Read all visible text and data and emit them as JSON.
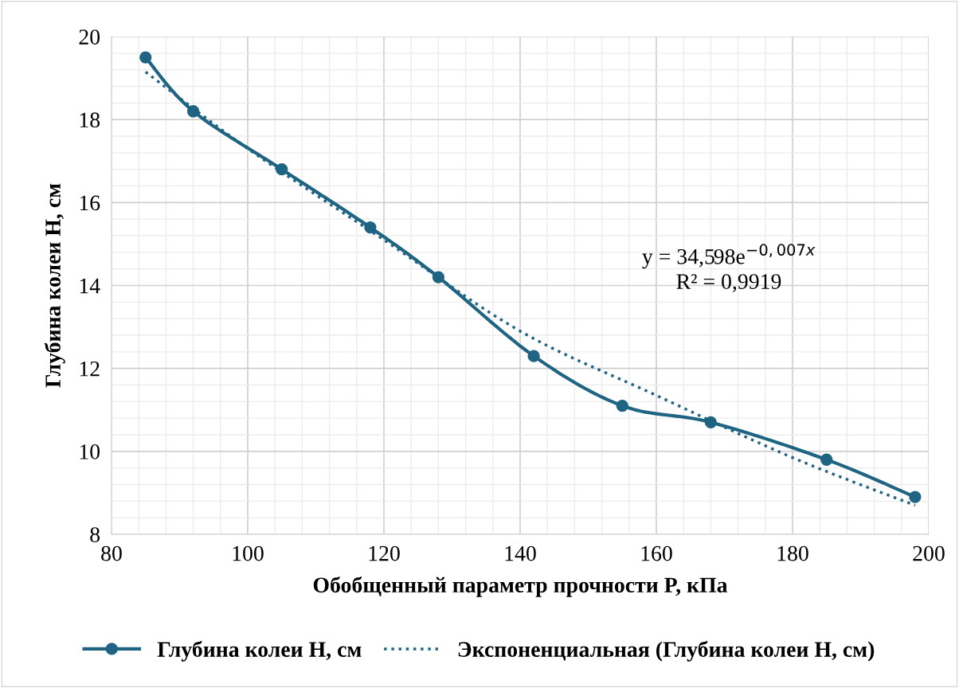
{
  "chart_data": {
    "type": "line",
    "xlabel": "Обобщенный параметр прочности P, кПа",
    "ylabel": "Глубина колеи H, см",
    "x": [
      85,
      92,
      105,
      118,
      128,
      142,
      155,
      168,
      185,
      198
    ],
    "series": [
      {
        "name": "Глубина колеи H, см",
        "color": "#1f6482",
        "values": [
          19.5,
          18.2,
          16.8,
          15.4,
          14.2,
          12.3,
          11.1,
          10.7,
          9.8,
          8.9
        ],
        "marker": "circle",
        "line_style": "solid"
      },
      {
        "name": "Экспоненциальная (Глубина колеи H, см)",
        "color": "#1f6482",
        "type": "line",
        "x": [
          85,
          100,
          120,
          140,
          160,
          180,
          198
        ],
        "values": [
          19.15,
          17.3,
          15.1,
          12.9,
          11.35,
          9.85,
          8.7
        ],
        "marker": "none",
        "line_style": "dotted"
      }
    ],
    "annotations": [
      "y = 34,598e$^{−0,007x}$",
      "R² = 0,9919"
    ],
    "xlim": [
      80,
      200
    ],
    "xticks": [
      80,
      100,
      120,
      140,
      160,
      180,
      200
    ],
    "ylim": [
      8,
      20
    ],
    "yticks": [
      8,
      10,
      12,
      14,
      16,
      18,
      20
    ],
    "grid": true,
    "legend": "bottom"
  }
}
